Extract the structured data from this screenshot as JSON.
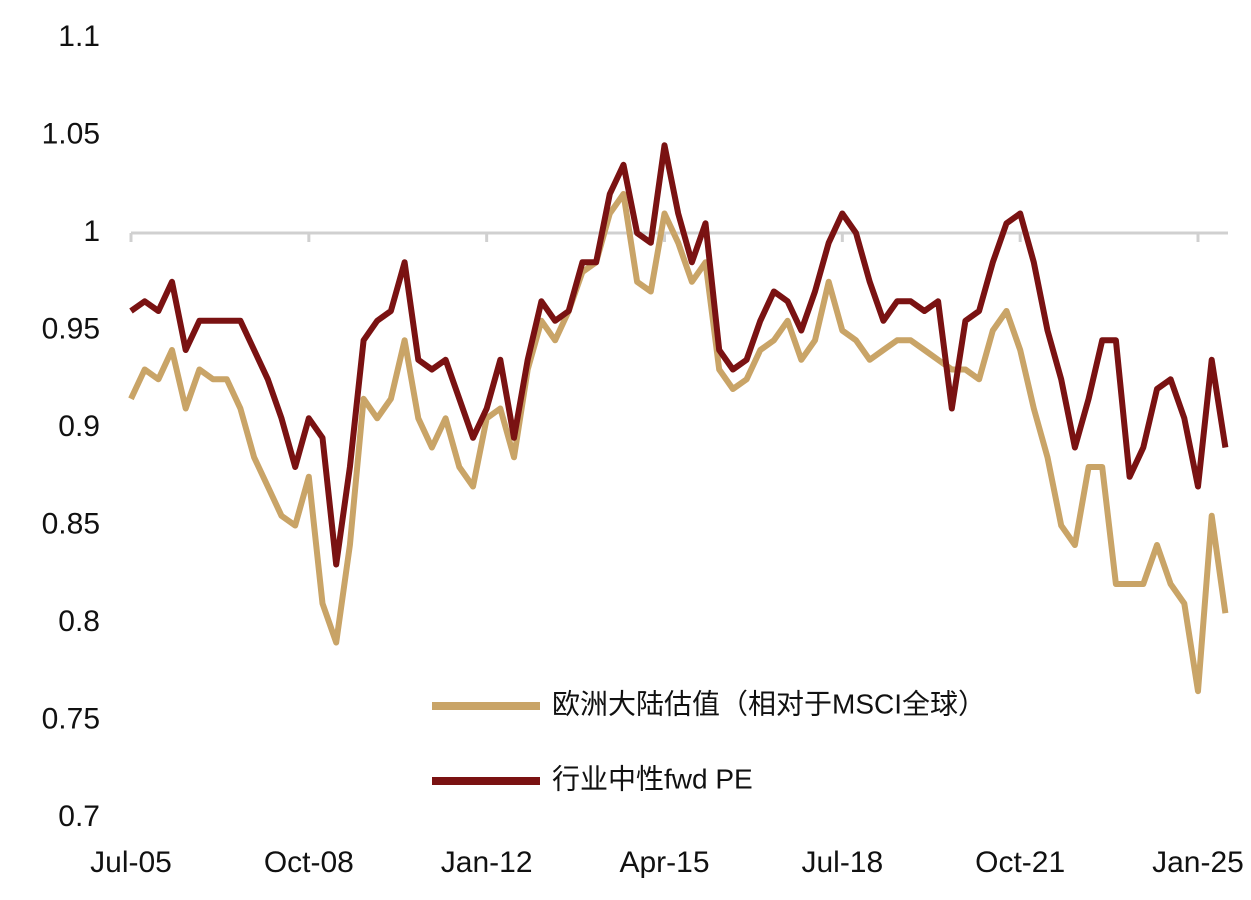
{
  "chart_data": {
    "type": "line",
    "categories": [
      "Jul-05",
      null,
      null,
      null,
      null,
      null,
      null,
      null,
      null,
      null,
      null,
      null,
      null,
      "Oct-08",
      null,
      null,
      null,
      null,
      null,
      null,
      null,
      null,
      null,
      null,
      null,
      null,
      "Jan-12",
      null,
      null,
      null,
      null,
      null,
      null,
      null,
      null,
      null,
      null,
      null,
      null,
      "Apr-15",
      null,
      null,
      null,
      null,
      null,
      null,
      null,
      null,
      null,
      null,
      null,
      null,
      "Jul-18",
      null,
      null,
      null,
      null,
      null,
      null,
      null,
      null,
      null,
      null,
      null,
      null,
      "Oct-21",
      null,
      null,
      null,
      null,
      null,
      null,
      null,
      null,
      null,
      null,
      null,
      null,
      "Jan-25",
      null,
      null
    ],
    "series": [
      {
        "name": "欧洲大陆估值（相对于MSCI全球）",
        "color": "#c9a467",
        "values": [
          0.915,
          0.93,
          0.925,
          0.94,
          0.91,
          0.93,
          0.925,
          0.925,
          0.91,
          0.885,
          0.87,
          0.855,
          0.85,
          0.875,
          0.81,
          0.79,
          0.84,
          0.915,
          0.905,
          0.915,
          0.945,
          0.905,
          0.89,
          0.905,
          0.88,
          0.87,
          0.905,
          0.91,
          0.885,
          0.93,
          0.955,
          0.945,
          0.96,
          0.98,
          0.985,
          1.01,
          1.02,
          0.975,
          0.97,
          1.01,
          0.995,
          0.975,
          0.985,
          0.93,
          0.92,
          0.925,
          0.94,
          0.945,
          0.955,
          0.935,
          0.945,
          0.975,
          0.95,
          0.945,
          0.935,
          0.94,
          0.945,
          0.945,
          0.94,
          0.935,
          0.93,
          0.93,
          0.925,
          0.95,
          0.96,
          0.94,
          0.91,
          0.885,
          0.85,
          0.84,
          0.88,
          0.88,
          0.82,
          0.82,
          0.82,
          0.84,
          0.82,
          0.81,
          0.765,
          0.855,
          0.805
        ]
      },
      {
        "name": "行业中性fwd PE",
        "color": "#7a1212",
        "values": [
          0.96,
          0.965,
          0.96,
          0.975,
          0.94,
          0.955,
          0.955,
          0.955,
          0.955,
          0.94,
          0.925,
          0.905,
          0.88,
          0.905,
          0.895,
          0.83,
          0.88,
          0.945,
          0.955,
          0.96,
          0.985,
          0.935,
          0.93,
          0.935,
          0.915,
          0.895,
          0.91,
          0.935,
          0.895,
          0.935,
          0.965,
          0.955,
          0.96,
          0.985,
          0.985,
          1.02,
          1.035,
          1.0,
          0.995,
          1.045,
          1.01,
          0.985,
          1.005,
          0.94,
          0.93,
          0.935,
          0.955,
          0.97,
          0.965,
          0.95,
          0.97,
          0.995,
          1.01,
          1.0,
          0.975,
          0.955,
          0.965,
          0.965,
          0.96,
          0.965,
          0.91,
          0.955,
          0.96,
          0.985,
          1.005,
          1.01,
          0.985,
          0.95,
          0.925,
          0.89,
          0.915,
          0.945,
          0.945,
          0.875,
          0.89,
          0.92,
          0.925,
          0.905,
          0.87,
          0.935,
          0.89
        ]
      }
    ],
    "ylim": [
      0.7,
      1.1
    ],
    "yticks": [
      0.7,
      0.75,
      0.8,
      0.85,
      0.9,
      0.95,
      1,
      1.05,
      1.1
    ],
    "x_axis_crosses": 1
  }
}
